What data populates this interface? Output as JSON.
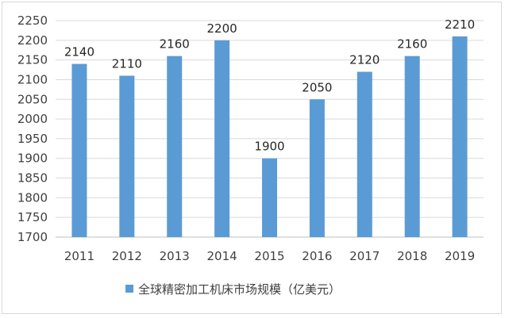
{
  "chart_data": {
    "type": "bar",
    "categories": [
      "2011",
      "2012",
      "2013",
      "2014",
      "2015",
      "2016",
      "2017",
      "2018",
      "2019"
    ],
    "series": [
      {
        "name": "全球精密加工机床市场规模（亿美元）",
        "values": [
          2140,
          2110,
          2160,
          2200,
          1900,
          2050,
          2120,
          2160,
          2210
        ],
        "color": "#5b9bd5"
      }
    ],
    "title": "",
    "xlabel": "",
    "ylabel": "",
    "ylim": [
      1700,
      2250
    ],
    "yticks": [
      1700,
      1750,
      1800,
      1850,
      1900,
      1950,
      2000,
      2050,
      2100,
      2150,
      2200,
      2250
    ],
    "grid": true,
    "legend": "bottom",
    "data_labels": true
  }
}
